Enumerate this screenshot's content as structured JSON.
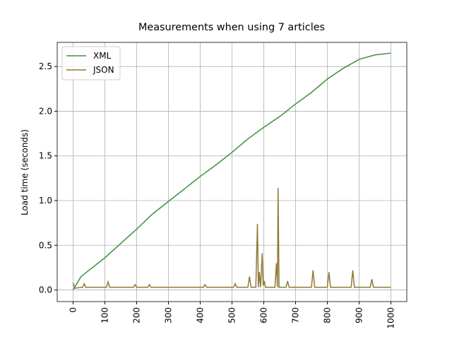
{
  "chart_data": {
    "type": "line",
    "title": "Measurements when using 7 articles",
    "y_label": "Load time (seconds)",
    "xlim": [
      -50,
      1050
    ],
    "ylim": [
      -0.13,
      2.77
    ],
    "xticks": [
      0,
      100,
      200,
      300,
      400,
      500,
      600,
      700,
      800,
      900,
      1000
    ],
    "yticks": [
      {
        "value": 0,
        "label": "0.0"
      },
      0.5,
      {
        "value": 1,
        "label": "1.0"
      },
      1.5,
      {
        "value": 2,
        "label": "2.0"
      },
      2.5
    ],
    "grid": true,
    "legend": "upper-left",
    "series": [
      {
        "name": "XML",
        "color": "#3d8f3d",
        "x": [
          0,
          25,
          50,
          100,
          150,
          200,
          250,
          300,
          350,
          400,
          450,
          500,
          550,
          600,
          650,
          700,
          750,
          800,
          850,
          900,
          950,
          1000
        ],
        "values": [
          0,
          0.15,
          0.22,
          0.36,
          0.52,
          0.68,
          0.85,
          0.99,
          1.13,
          1.27,
          1.4,
          1.54,
          1.69,
          1.82,
          1.94,
          2.08,
          2.21,
          2.36,
          2.48,
          2.58,
          2.63,
          2.65
        ]
      },
      {
        "name": "JSON",
        "color": "#8f7a35",
        "x": [
          0,
          5,
          30,
          35,
          40,
          105,
          110,
          115,
          190,
          195,
          200,
          235,
          240,
          245,
          410,
          415,
          420,
          505,
          510,
          515,
          550,
          555,
          560,
          575,
          580,
          583,
          586,
          590,
          595,
          598,
          602,
          605,
          635,
          640,
          643,
          645,
          648,
          670,
          675,
          680,
          750,
          755,
          760,
          800,
          805,
          810,
          875,
          880,
          885,
          935,
          940,
          945,
          1000
        ],
        "values": [
          0.08,
          0.02,
          0.03,
          0.07,
          0.03,
          0.03,
          0.09,
          0.03,
          0.03,
          0.06,
          0.03,
          0.03,
          0.06,
          0.03,
          0.03,
          0.06,
          0.03,
          0.03,
          0.07,
          0.03,
          0.03,
          0.15,
          0.03,
          0.03,
          0.74,
          0.03,
          0.2,
          0.03,
          0.41,
          0.05,
          0.1,
          0.03,
          0.03,
          0.3,
          0.03,
          1.14,
          0.03,
          0.03,
          0.1,
          0.03,
          0.03,
          0.22,
          0.03,
          0.03,
          0.2,
          0.03,
          0.03,
          0.22,
          0.03,
          0.03,
          0.12,
          0.03,
          0.03
        ]
      }
    ]
  }
}
